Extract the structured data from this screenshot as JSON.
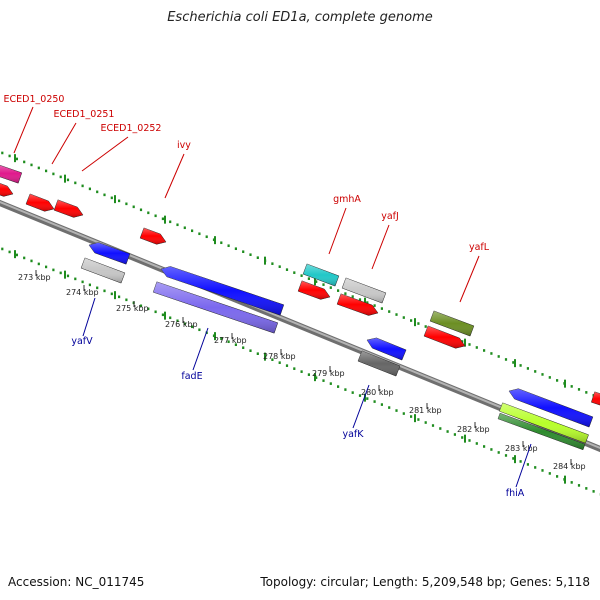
{
  "title": "Escherichia coli ED1a, complete genome",
  "footer": {
    "accession": "Accession: NC_011745",
    "stats": "Topology: circular; Length: 5,209,548 bp; Genes: 5,118"
  },
  "colors": {
    "backbone": "#8c8c8c",
    "tick": "#1e8c1e",
    "forward_label": "#cc0000",
    "reverse_label": "#000099"
  },
  "scale_labels": [
    "273 kbp",
    "274 kbp",
    "275 kbp",
    "276 kbp",
    "277 kbp",
    "278 kbp",
    "279 kbp",
    "280 kbp",
    "281 kbp",
    "282 kbp",
    "283 kbp",
    "284 kbp"
  ],
  "forward_genes": [
    {
      "name": "ECED1_0250",
      "color": "#e0198c"
    },
    {
      "name": "ECED1_0251",
      "color": "#ff0000"
    },
    {
      "name": "ECED1_0252",
      "color": "#ff0000"
    },
    {
      "name": "ivy",
      "color": "#ff0000"
    },
    {
      "name": "gmhA",
      "color": "#22c8c8"
    },
    {
      "name": "yafJ",
      "color": "#c8c8c8"
    },
    {
      "name": "yafL",
      "color": "#6b8e23"
    }
  ],
  "reverse_genes": [
    {
      "name": "yafV",
      "color": "#0000ff"
    },
    {
      "name": "fadE",
      "color": "#0000ff"
    },
    {
      "name": "yafK",
      "color": "#0000ff"
    },
    {
      "name": "fhiA",
      "color": "#0000ff"
    }
  ]
}
